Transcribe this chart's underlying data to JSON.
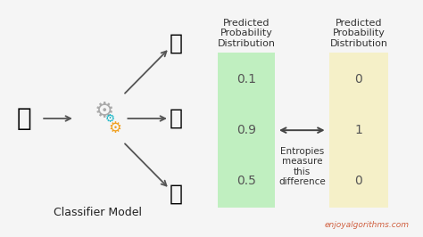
{
  "bg_color": "#f5f5f5",
  "left_col_header": "Predicted\nProbability\nDistribution",
  "right_col_header": "Predicted\nProbability\nDistribution",
  "left_values": [
    "0.1",
    "0.9",
    "0.5"
  ],
  "right_values": [
    "0",
    "1",
    "0"
  ],
  "left_box_color": "#c0efc0",
  "right_box_color": "#f5f0c8",
  "entropy_text": "Entropies\nmeasure\nthis\ndifference",
  "classifier_label": "Classifier Model",
  "watermark": "enjoyalgorithms.com",
  "watermark_color": "#d06040",
  "header_fontsize": 8,
  "value_fontsize": 10,
  "entropy_fontsize": 7.5,
  "classifier_fontsize": 9,
  "arrow_color": "#555555"
}
